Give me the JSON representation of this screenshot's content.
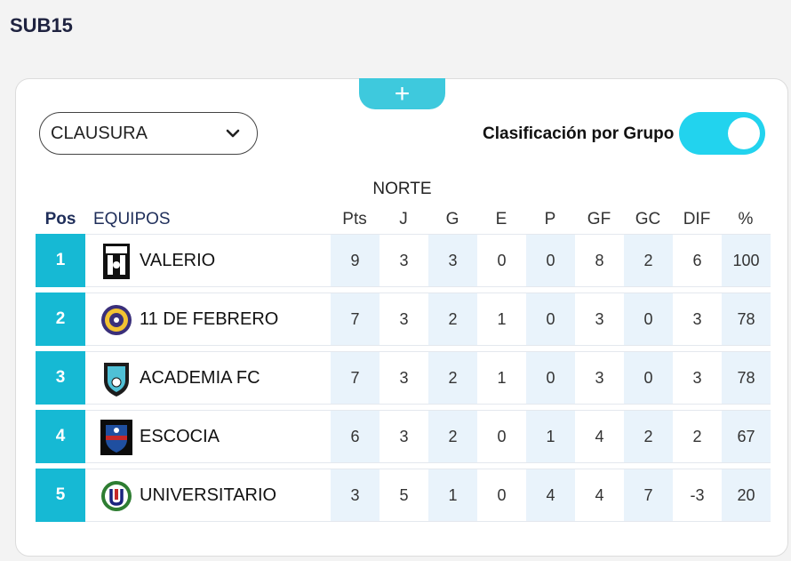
{
  "page": {
    "title": "SUB15"
  },
  "add_button": {
    "label": "+"
  },
  "tournament_select": {
    "value": "CLAUSURA"
  },
  "group_toggle": {
    "label": "Clasificación por Grupo",
    "on": true
  },
  "group": {
    "name": "NORTE"
  },
  "colors": {
    "accent": "#16b9d4",
    "toggle": "#22d3ee",
    "shade": "#e9f3fb",
    "title": "#1f2340"
  },
  "headers": {
    "pos": "Pos",
    "team": "EQUIPOS",
    "pts": "Pts",
    "j": "J",
    "g": "G",
    "e": "E",
    "p": "P",
    "gf": "GF",
    "gc": "GC",
    "dif": "DIF",
    "pct": "%"
  },
  "rows": [
    {
      "pos": "1",
      "team": "VALERIO",
      "logo": "valerio-crest-icon",
      "pts": "9",
      "j": "3",
      "g": "3",
      "e": "0",
      "p": "0",
      "gf": "8",
      "gc": "2",
      "dif": "6",
      "pct": "100"
    },
    {
      "pos": "2",
      "team": "11 DE FEBRERO",
      "logo": "febrero-crest-icon",
      "pts": "7",
      "j": "3",
      "g": "2",
      "e": "1",
      "p": "0",
      "gf": "3",
      "gc": "0",
      "dif": "3",
      "pct": "78"
    },
    {
      "pos": "3",
      "team": "ACADEMIA FC",
      "logo": "academia-crest-icon",
      "pts": "7",
      "j": "3",
      "g": "2",
      "e": "1",
      "p": "0",
      "gf": "3",
      "gc": "0",
      "dif": "3",
      "pct": "78"
    },
    {
      "pos": "4",
      "team": "ESCOCIA",
      "logo": "escocia-crest-icon",
      "pts": "6",
      "j": "3",
      "g": "2",
      "e": "0",
      "p": "1",
      "gf": "4",
      "gc": "2",
      "dif": "2",
      "pct": "67"
    },
    {
      "pos": "5",
      "team": "UNIVERSITARIO",
      "logo": "universitario-crest-icon",
      "pts": "3",
      "j": "5",
      "g": "1",
      "e": "0",
      "p": "4",
      "gf": "4",
      "gc": "7",
      "dif": "-3",
      "pct": "20"
    }
  ]
}
